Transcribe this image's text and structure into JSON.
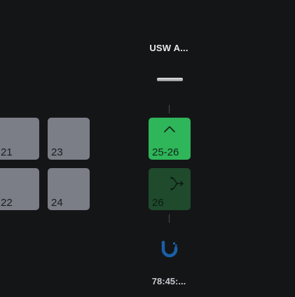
{
  "device": {
    "name": "USW A...",
    "mac": "78:45:..."
  },
  "ports": [
    {
      "label": "21",
      "state": "inactive"
    },
    {
      "label": "23",
      "state": "inactive"
    },
    {
      "label": "22",
      "state": "inactive"
    },
    {
      "label": "24",
      "state": "inactive"
    }
  ],
  "uplink_ports": [
    {
      "label": "25-26",
      "state": "active",
      "icon": "chevron-up-icon"
    },
    {
      "label": "26",
      "state": "active-secondary",
      "icon": "split-arrow-icon"
    }
  ],
  "uplink_device": {
    "icon": "ubiquiti-logo-icon"
  },
  "colors": {
    "background": "#141517",
    "port_inactive": "#7b7d87",
    "port_active": "#2fb55a",
    "port_active_secondary": "#1f4a2c",
    "logo_blue": "#1a5fa8"
  }
}
